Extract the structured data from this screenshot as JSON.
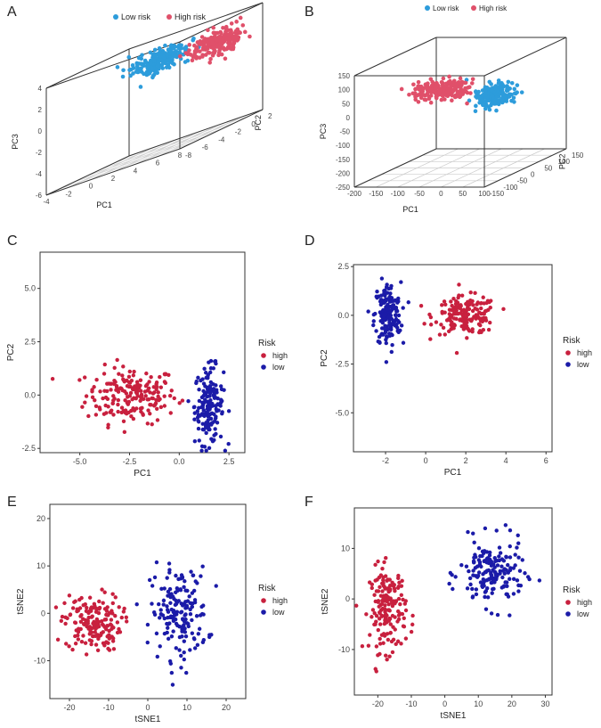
{
  "figure": {
    "panel_labels": [
      "A",
      "B",
      "C",
      "D",
      "E",
      "F"
    ],
    "colors": {
      "high": "#C8203E",
      "low": "#1B1BA8",
      "high3d": "#E0506A",
      "low3d": "#2D9CDB",
      "axis": "#222222",
      "box": "#333333",
      "grid": "#cccccc"
    }
  },
  "chart_data": [
    {
      "id": "A",
      "type": "scatter3d",
      "legend": [
        "Low risk",
        "High risk"
      ],
      "xlabel": "PC1",
      "ylabel": "PC2",
      "zlabel": "PC3",
      "xticks": [
        "-4",
        "-2",
        "0",
        "2",
        "4",
        "6",
        "8"
      ],
      "yticks": [
        "-8",
        "-6",
        "-4",
        "-2",
        "0",
        "2"
      ],
      "zticks": [
        "-6",
        "-4",
        "-2",
        "0",
        "2",
        "4"
      ],
      "series": [
        {
          "name": "Low risk",
          "center": [
            1.0,
            -1.0,
            2.2
          ],
          "spread": [
            1.6,
            1.2,
            0.9
          ],
          "n": 200
        },
        {
          "name": "High risk",
          "center": [
            5.5,
            0.0,
            2.0
          ],
          "spread": [
            1.6,
            1.0,
            0.9
          ],
          "n": 220
        }
      ]
    },
    {
      "id": "B",
      "type": "scatter3d",
      "legend": [
        "Low risk",
        "High risk"
      ],
      "xlabel": "PC1",
      "ylabel": "PC2",
      "zlabel": "PC3",
      "xticks": [
        "-200",
        "-150",
        "-100",
        "-50",
        "0",
        "50",
        "100"
      ],
      "yticks": [
        "-150",
        "-100",
        "-50",
        "0",
        "50",
        "100",
        "150"
      ],
      "zticks": [
        "-250",
        "-200",
        "-150",
        "-100",
        "-50",
        "0",
        "50",
        "100",
        "150"
      ],
      "series": [
        {
          "name": "Low risk",
          "center": [
            40,
            -20,
            20
          ],
          "spread": [
            25,
            30,
            35
          ],
          "n": 200
        },
        {
          "name": "High risk",
          "center": [
            -80,
            -20,
            40
          ],
          "spread": [
            45,
            35,
            25
          ],
          "n": 200
        }
      ]
    },
    {
      "id": "C",
      "type": "scatter",
      "xlabel": "PC1",
      "ylabel": "PC2",
      "xlim": [
        -7,
        3.3
      ],
      "ylim": [
        -2.7,
        6.7
      ],
      "xticks": [
        -5.0,
        -2.5,
        0.0,
        2.5
      ],
      "xtick_labels": [
        "-5.0",
        "-2.5",
        "0.0",
        "2.5"
      ],
      "yticks": [
        -2.5,
        0.0,
        2.5,
        5.0
      ],
      "ytick_labels": [
        "-2.5",
        "0.0",
        "2.5",
        "5.0"
      ],
      "legend_title": "Risk",
      "legend": [
        "high",
        "low"
      ],
      "series": [
        {
          "name": "high",
          "center": [
            -2.4,
            0.0
          ],
          "spread": [
            1.9,
            1.1
          ],
          "n": 190
        },
        {
          "name": "low",
          "center": [
            1.5,
            -0.5
          ],
          "spread": [
            0.6,
            1.5
          ],
          "n": 170
        }
      ]
    },
    {
      "id": "D",
      "type": "scatter",
      "xlabel": "PC1",
      "ylabel": "PC2",
      "xlim": [
        -3.6,
        6.3
      ],
      "ylim": [
        -7.0,
        2.6
      ],
      "xticks": [
        -2,
        0,
        2,
        4,
        6
      ],
      "xtick_labels": [
        "-2",
        "0",
        "2",
        "4",
        "6"
      ],
      "yticks": [
        -5.0,
        -2.5,
        0.0,
        2.5
      ],
      "ytick_labels": [
        "-5.0",
        "-2.5",
        "0.0",
        "2.5"
      ],
      "legend_title": "Risk",
      "legend": [
        "high",
        "low"
      ],
      "series": [
        {
          "name": "high",
          "center": [
            2.0,
            0.0
          ],
          "spread": [
            1.3,
            0.8
          ],
          "n": 170
        },
        {
          "name": "low",
          "center": [
            -1.9,
            0.0
          ],
          "spread": [
            0.55,
            1.4
          ],
          "n": 170
        }
      ]
    },
    {
      "id": "E",
      "type": "scatter",
      "xlabel": "tSNE1",
      "ylabel": "tSNE2",
      "xlim": [
        -25,
        25
      ],
      "ylim": [
        -18,
        23
      ],
      "xticks": [
        -20,
        -10,
        0,
        10,
        20
      ],
      "xtick_labels": [
        "-20",
        "-10",
        "0",
        "10",
        "20"
      ],
      "yticks": [
        -10,
        0,
        10,
        20
      ],
      "ytick_labels": [
        "-10",
        "0",
        "10",
        "20"
      ],
      "legend_title": "Risk",
      "legend": [
        "high",
        "low"
      ],
      "series": [
        {
          "name": "high",
          "center": [
            -14,
            -2.0
          ],
          "spread": [
            6.0,
            5.0
          ],
          "n": 170
        },
        {
          "name": "low",
          "center": [
            8,
            0.0
          ],
          "spread": [
            6.0,
            8.0
          ],
          "n": 170
        }
      ]
    },
    {
      "id": "F",
      "type": "scatter",
      "xlabel": "tSNE1",
      "ylabel": "tSNE2",
      "xlim": [
        -27,
        32
      ],
      "ylim": [
        -19,
        18
      ],
      "xticks": [
        -20,
        -10,
        0,
        10,
        20,
        30
      ],
      "xtick_labels": [
        "-20",
        "-10",
        "0",
        "10",
        "20",
        "30"
      ],
      "yticks": [
        -10,
        0,
        10
      ],
      "ytick_labels": [
        "-10",
        "0",
        "10"
      ],
      "legend_title": "Risk",
      "legend": [
        "high",
        "low"
      ],
      "series": [
        {
          "name": "high",
          "center": [
            -17,
            -2.0
          ],
          "spread": [
            4.5,
            7.0
          ],
          "n": 170
        },
        {
          "name": "low",
          "center": [
            14,
            5.0
          ],
          "spread": [
            8.0,
            5.5
          ],
          "n": 170
        }
      ]
    }
  ]
}
